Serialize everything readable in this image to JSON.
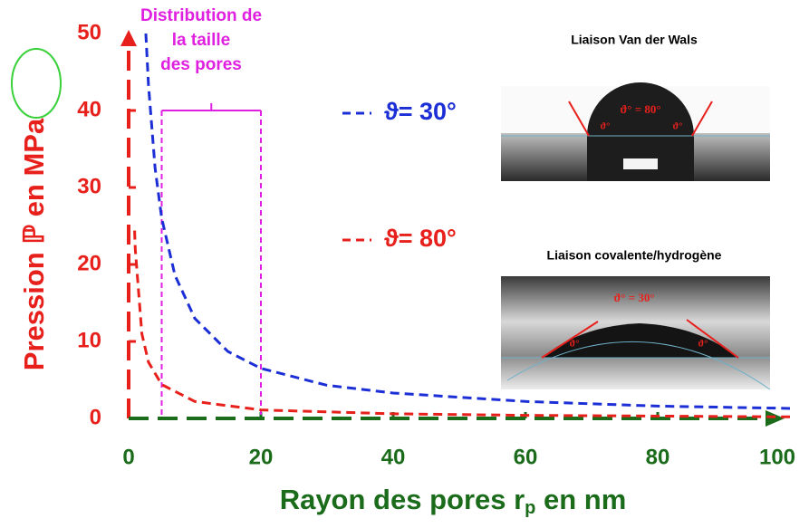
{
  "chart_data": {
    "type": "line",
    "x_label": [
      "Rayon des pores r",
      "p",
      " en nm"
    ],
    "y_label": [
      "Pression ℙ en ",
      "MPa"
    ],
    "xlim": [
      0,
      100
    ],
    "xticks": [
      0,
      20,
      40,
      60,
      80,
      100
    ],
    "ylim": [
      0,
      50
    ],
    "yticks": [
      0,
      10,
      20,
      30,
      40,
      50
    ],
    "x_axis_color": "#1a6b1a",
    "y_axis_color": "#e8201c",
    "series": [
      {
        "name": "ϑ= 30°",
        "color": "#1c2fd6",
        "x": [
          2.6,
          3,
          4,
          5,
          7,
          10,
          15,
          20,
          30,
          40,
          60,
          80,
          100
        ],
        "values": [
          50,
          43.3,
          32.5,
          26,
          18.6,
          13,
          8.7,
          6.5,
          4.3,
          3.3,
          2.2,
          1.6,
          1.3
        ]
      },
      {
        "name": "ϑ= 80°",
        "color": "#e8201c",
        "x": [
          0.9,
          1,
          2,
          3,
          5,
          10,
          20,
          40,
          60,
          80,
          100
        ],
        "values": [
          24.4,
          22,
          11,
          7.3,
          4.4,
          2.2,
          1.1,
          0.6,
          0.4,
          0.3,
          0.2
        ]
      }
    ],
    "pore_range": {
      "label": [
        "Distribution de",
        "la taille",
        "des pores"
      ],
      "x": [
        5,
        20
      ],
      "y": 40,
      "color": "#e020e0"
    },
    "images": [
      {
        "title": "Liaison Van der Wals",
        "angle_label": "ϑ° = 80°",
        "corner_label": "ϑ°"
      },
      {
        "title": "Liaison covalente/hydrogène",
        "angle_label": "ϑ° = 30°",
        "corner_label": "ϑ°"
      }
    ]
  }
}
